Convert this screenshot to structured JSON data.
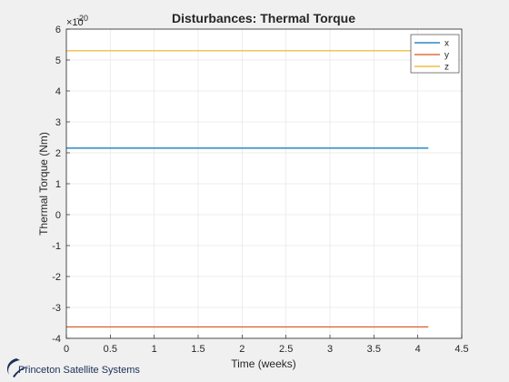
{
  "chart_data": {
    "type": "line",
    "title": "Disturbances: Thermal Torque",
    "xlabel": "Time (weeks)",
    "ylabel": "Thermal Torque (Nm)",
    "exponent_prefix": "×10",
    "exponent": "-20",
    "xlim": [
      0,
      4.5
    ],
    "ylim": [
      -4,
      6
    ],
    "xticks": [
      "0",
      "0.5",
      "1",
      "1.5",
      "2",
      "2.5",
      "3",
      "3.5",
      "4",
      "4.5"
    ],
    "yticks": [
      "-4",
      "-3",
      "-2",
      "-1",
      "0",
      "1",
      "2",
      "3",
      "4",
      "5",
      "6"
    ],
    "grid": true,
    "legend_position": "top-right",
    "series": [
      {
        "name": "x",
        "color": "#0072bd",
        "x": [
          0,
          4.12
        ],
        "y": [
          2.15,
          2.15
        ]
      },
      {
        "name": "y",
        "color": "#d95319",
        "x": [
          0,
          4.12
        ],
        "y": [
          -3.63,
          -3.63
        ]
      },
      {
        "name": "z",
        "color": "#edb120",
        "x": [
          0,
          4.12
        ],
        "y": [
          5.3,
          5.3
        ]
      }
    ]
  },
  "branding": {
    "text": "Princeton Satellite Systems",
    "logo_icon": "swoosh-logo-icon"
  }
}
